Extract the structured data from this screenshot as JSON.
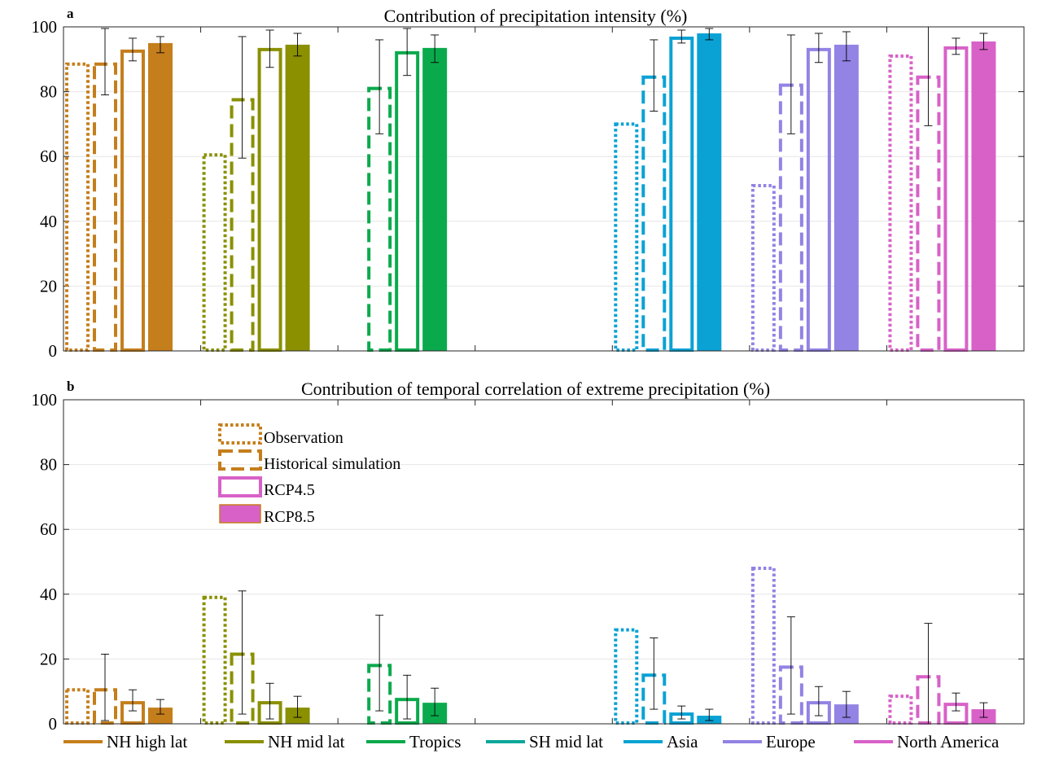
{
  "figure": {
    "panel_a_letter": "a",
    "panel_b_letter": "b"
  },
  "legend_styles": [
    {
      "label": "Observation",
      "style": "dotted"
    },
    {
      "label": "Historical simulation",
      "style": "dashed"
    },
    {
      "label": "RCP4.5",
      "style": "outline"
    },
    {
      "label": "RCP8.5",
      "style": "filled"
    }
  ],
  "legend_regions": [
    {
      "label": "NH high lat",
      "color": "#C57E1C"
    },
    {
      "label": "NH mid lat",
      "color": "#8A9000"
    },
    {
      "label": "Tropics",
      "color": "#0AAA4C"
    },
    {
      "label": "SH mid lat",
      "color": "#0BA79A"
    },
    {
      "label": "Asia",
      "color": "#0AA2D4"
    },
    {
      "label": "Europe",
      "color": "#9283E4"
    },
    {
      "label": "North America",
      "color": "#D861C8"
    }
  ],
  "chart_data": [
    {
      "type": "bar",
      "title": "Contribution of precipitation intensity (%)",
      "xlabel": "",
      "ylabel": "",
      "ylim": [
        0,
        100
      ],
      "yticks": [
        "0",
        "20",
        "40",
        "60",
        "80",
        "100"
      ],
      "grid": true,
      "categories": [
        "NH high lat",
        "NH mid lat",
        "Tropics",
        "SH mid lat",
        "Asia",
        "Europe",
        "North America"
      ],
      "series": [
        {
          "name": "Observation",
          "values": [
            89,
            61,
            null,
            null,
            70.5,
            51.5,
            91.5
          ]
        },
        {
          "name": "Historical simulation",
          "values": [
            89,
            78,
            81.5,
            null,
            85,
            82.5,
            85
          ],
          "err_low": [
            79,
            59.5,
            67,
            null,
            74,
            67,
            69.5
          ],
          "err_high": [
            99.5,
            97,
            96,
            null,
            96,
            97.5,
            100
          ]
        },
        {
          "name": "RCP4.5",
          "values": [
            93,
            93.5,
            92.5,
            null,
            97,
            93.5,
            94
          ],
          "err_low": [
            89.5,
            87.5,
            85,
            null,
            95,
            89,
            91.5
          ],
          "err_high": [
            96.5,
            99,
            99.5,
            null,
            99,
            98,
            96.5
          ]
        },
        {
          "name": "RCP8.5",
          "values": [
            95,
            94.5,
            93.5,
            null,
            98,
            94.5,
            95.5
          ],
          "err_low": [
            92,
            91,
            89,
            null,
            96,
            89.5,
            93
          ],
          "err_high": [
            97,
            98,
            97.5,
            null,
            99.5,
            98.5,
            98
          ]
        }
      ]
    },
    {
      "type": "bar",
      "title": "Contribution of temporal correlation of extreme precipitation (%)",
      "xlabel": "",
      "ylabel": "",
      "ylim": [
        0,
        100
      ],
      "yticks": [
        "0",
        "20",
        "40",
        "60",
        "80",
        "100"
      ],
      "grid": true,
      "categories": [
        "NH high lat",
        "NH mid lat",
        "Tropics",
        "SH mid lat",
        "Asia",
        "Europe",
        "North America"
      ],
      "series": [
        {
          "name": "Observation",
          "values": [
            11,
            39.5,
            null,
            null,
            29.5,
            48.5,
            9
          ]
        },
        {
          "name": "Historical simulation",
          "values": [
            11,
            22,
            18.5,
            null,
            15.5,
            18,
            15
          ],
          "err_low": [
            1,
            3,
            4,
            null,
            4.5,
            3,
            0
          ],
          "err_high": [
            21.5,
            41,
            33.5,
            null,
            26.5,
            33,
            31
          ]
        },
        {
          "name": "RCP4.5",
          "values": [
            7,
            7,
            8,
            null,
            3.5,
            7,
            6.5
          ],
          "err_low": [
            4,
            1.5,
            1.5,
            null,
            1.5,
            2.5,
            4
          ],
          "err_high": [
            10.5,
            12.5,
            15,
            null,
            5.5,
            11.5,
            9.5
          ]
        },
        {
          "name": "RCP8.5",
          "values": [
            5,
            5,
            6.5,
            null,
            2.5,
            6,
            4.5
          ],
          "err_low": [
            3,
            2,
            2.5,
            null,
            1,
            2,
            2
          ],
          "err_high": [
            7.5,
            8.5,
            11,
            null,
            4.5,
            10,
            6.5
          ]
        }
      ]
    }
  ]
}
